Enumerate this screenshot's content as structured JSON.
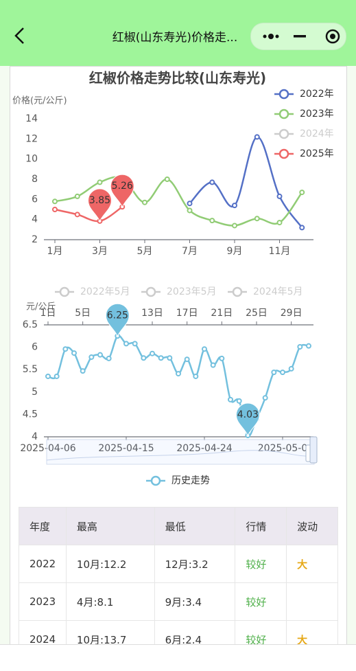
{
  "header": {
    "title": "红椒(山东寿光)价格走..."
  },
  "chart_data": [
    {
      "type": "line",
      "title": "红椒价格走势比较(山东寿光)",
      "y_label": "价格(元/公斤)",
      "categories": [
        "1月",
        null,
        "3月",
        null,
        "5月",
        null,
        "7月",
        null,
        "9月",
        null,
        "11月",
        null
      ],
      "ylim": [
        2,
        14
      ],
      "yticks": [
        2,
        4,
        6,
        8,
        10,
        12,
        14
      ],
      "grid": false,
      "legend": "right",
      "smooth": true,
      "series": [
        {
          "name": "2022年",
          "color": "#5470c6",
          "values": [
            null,
            null,
            null,
            null,
            null,
            null,
            5.6,
            7.7,
            5.4,
            12.2,
            6.3,
            3.2
          ]
        },
        {
          "name": "2023年",
          "color": "#91cc75",
          "values": [
            5.8,
            6.3,
            7.7,
            8.1,
            5.7,
            8.0,
            4.9,
            3.9,
            3.4,
            4.1,
            3.7,
            6.7
          ]
        },
        {
          "name": "2024年",
          "hidden": true,
          "values": [
            null,
            null,
            null,
            null,
            null,
            null,
            null,
            null,
            null,
            null,
            null,
            null
          ]
        },
        {
          "name": "2025年",
          "color": "#ee6666",
          "values": [
            5.0,
            4.5,
            3.85,
            5.26,
            null,
            null,
            null,
            null,
            null,
            null,
            null,
            null
          ],
          "pins": [
            2,
            3
          ]
        }
      ]
    },
    {
      "type": "line",
      "y_label": "元/公斤",
      "categories": [
        "2025-04-06",
        null,
        null,
        null,
        null,
        null,
        null,
        null,
        null,
        "2025-04-15",
        null,
        null,
        null,
        null,
        null,
        null,
        null,
        null,
        "2025-04-24",
        null,
        null,
        null,
        null,
        null,
        null,
        null,
        null,
        "2025-05-0",
        null,
        null,
        null
      ],
      "top_categories": [
        "1日",
        null,
        null,
        null,
        "5日",
        null,
        null,
        null,
        "9日",
        null,
        null,
        null,
        "13日",
        null,
        null,
        null,
        "17日",
        null,
        null,
        null,
        "21日",
        null,
        null,
        null,
        "25日",
        null,
        null,
        null,
        "29日",
        null,
        null
      ],
      "top_legend": [
        "2022年5月",
        "2023年5月",
        "2024年5月"
      ],
      "ylim": [
        4,
        6.5
      ],
      "yticks": [
        4,
        4.5,
        5,
        5.5,
        6,
        6.5
      ],
      "grid": false,
      "legend": "bottom",
      "smooth": true,
      "data_zoom": true,
      "series": [
        {
          "name": "历史走势",
          "color": "#73c0de",
          "pins": [
            8,
            23
          ],
          "values": [
            5.35,
            5.35,
            5.96,
            5.87,
            5.47,
            5.78,
            5.83,
            5.75,
            6.25,
            6.08,
            6.08,
            5.76,
            5.86,
            5.76,
            5.76,
            5.41,
            5.73,
            5.35,
            5.96,
            5.6,
            5.75,
            4.83,
            4.8,
            4.03,
            4.4,
            4.87,
            5.44,
            5.44,
            5.52,
            6.01,
            6.03
          ]
        }
      ]
    }
  ],
  "table": {
    "headers": [
      "年度",
      "最高",
      "最低",
      "行情",
      "波动"
    ],
    "rows": [
      [
        "2022",
        "10月:12.2",
        "12月:3.2",
        "较好",
        "大"
      ],
      [
        "2023",
        "4月:8.1",
        "9月:3.4",
        "较好",
        null
      ],
      [
        "2024",
        "10月:13.7",
        "6月:2.4",
        "较好",
        "大"
      ]
    ]
  }
}
